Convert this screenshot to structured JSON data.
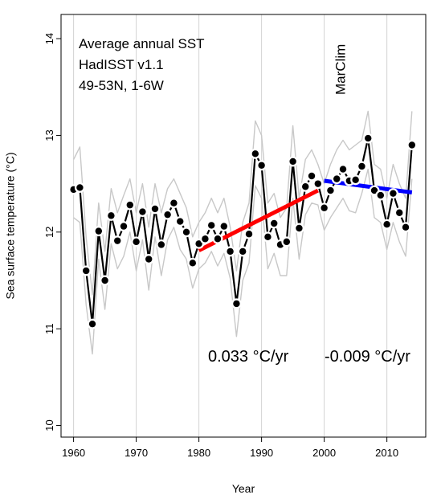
{
  "chart_data": {
    "type": "line",
    "xlabel": "Year",
    "ylabel": "Sea surface temperature (°C)",
    "xlim": [
      1958,
      2016.2
    ],
    "ylim": [
      9.88,
      14.25
    ],
    "xticks": [
      1960,
      1970,
      1980,
      1990,
      2000,
      2010
    ],
    "yticks": [
      10,
      11,
      12,
      13,
      14
    ],
    "grid": "vertical",
    "annotation_lines": [
      "Average annual SST",
      "HadISST v1.1",
      "49-53N, 1-6W"
    ],
    "marclim_label": "MarClim",
    "marclim_year": 2000,
    "series": [
      {
        "role": "mean",
        "color": "#000000",
        "x": [
          1960,
          1961,
          1962,
          1963,
          1964,
          1965,
          1966,
          1967,
          1968,
          1969,
          1970,
          1971,
          1972,
          1973,
          1974,
          1975,
          1976,
          1977,
          1978,
          1979,
          1980,
          1981,
          1982,
          1983,
          1984,
          1985,
          1986,
          1987,
          1988,
          1989,
          1990,
          1991,
          1992,
          1993,
          1994,
          1995,
          1996,
          1997,
          1998,
          1999,
          2000,
          2001,
          2002,
          2003,
          2004,
          2005,
          2006,
          2007,
          2008,
          2009,
          2010,
          2011,
          2012,
          2013,
          2014
        ],
        "values": [
          12.44,
          12.46,
          11.6,
          11.05,
          12.01,
          11.5,
          12.17,
          11.91,
          12.06,
          12.28,
          11.9,
          12.21,
          11.72,
          12.24,
          11.87,
          12.18,
          12.3,
          12.11,
          12.0,
          11.68,
          11.88,
          11.93,
          12.07,
          11.93,
          12.06,
          11.8,
          11.26,
          11.8,
          11.98,
          12.81,
          12.69,
          11.95,
          12.09,
          11.87,
          11.9,
          12.73,
          12.04,
          12.47,
          12.58,
          12.5,
          12.25,
          12.43,
          12.55,
          12.65,
          12.53,
          12.54,
          12.68,
          12.97,
          12.43,
          12.38,
          12.08,
          12.4,
          12.2,
          12.05,
          12.9
        ]
      },
      {
        "role": "upper",
        "color": "#c8c8c8",
        "x": [
          1960,
          1961,
          1962,
          1963,
          1964,
          1965,
          1966,
          1967,
          1968,
          1969,
          1970,
          1971,
          1972,
          1973,
          1974,
          1975,
          1976,
          1977,
          1978,
          1979,
          1980,
          1981,
          1982,
          1983,
          1984,
          1985,
          1986,
          1987,
          1988,
          1989,
          1990,
          1991,
          1992,
          1993,
          1994,
          1995,
          1996,
          1997,
          1998,
          1999,
          2000,
          2001,
          2002,
          2003,
          2004,
          2005,
          2006,
          2007,
          2008,
          2009,
          2010,
          2011,
          2012,
          2013,
          2014
        ],
        "values": [
          12.75,
          12.88,
          11.95,
          11.35,
          12.3,
          11.8,
          12.45,
          12.2,
          12.38,
          12.55,
          12.2,
          12.5,
          12.05,
          12.5,
          12.2,
          12.45,
          12.55,
          12.4,
          12.25,
          11.95,
          12.1,
          12.2,
          12.35,
          12.2,
          12.35,
          12.05,
          11.6,
          12.1,
          12.3,
          13.15,
          13.0,
          12.3,
          12.4,
          12.15,
          12.25,
          13.1,
          12.35,
          12.75,
          12.85,
          12.7,
          12.5,
          12.7,
          12.85,
          12.95,
          12.85,
          12.9,
          12.95,
          13.25,
          12.7,
          12.65,
          12.35,
          12.7,
          12.5,
          12.35,
          13.25
        ]
      },
      {
        "role": "lower",
        "color": "#c8c8c8",
        "x": [
          1960,
          1961,
          1962,
          1963,
          1964,
          1965,
          1966,
          1967,
          1968,
          1969,
          1970,
          1971,
          1972,
          1973,
          1974,
          1975,
          1976,
          1977,
          1978,
          1979,
          1980,
          1981,
          1982,
          1983,
          1984,
          1985,
          1986,
          1987,
          1988,
          1989,
          1990,
          1991,
          1992,
          1993,
          1994,
          1995,
          1996,
          1997,
          1998,
          1999,
          2000,
          2001,
          2002,
          2003,
          2004,
          2005,
          2006,
          2007,
          2008,
          2009,
          2010,
          2011,
          2012,
          2013,
          2014
        ],
        "values": [
          12.15,
          12.1,
          11.25,
          10.74,
          11.72,
          11.2,
          11.88,
          11.62,
          11.75,
          12.0,
          11.6,
          11.92,
          11.4,
          11.95,
          11.55,
          11.92,
          12.05,
          11.82,
          11.72,
          11.42,
          11.62,
          11.68,
          11.8,
          11.65,
          11.78,
          11.52,
          10.92,
          11.5,
          11.68,
          12.48,
          12.35,
          11.62,
          11.78,
          11.55,
          11.55,
          12.35,
          11.72,
          12.18,
          12.3,
          12.28,
          12.02,
          12.15,
          12.25,
          12.35,
          12.22,
          12.2,
          12.4,
          12.65,
          12.15,
          12.1,
          11.82,
          12.1,
          11.9,
          11.75,
          12.55
        ]
      }
    ],
    "trends": [
      {
        "label": "0.033 °C/yr",
        "color": "#ff0000",
        "x": [
          1980,
          1999
        ],
        "y": [
          11.81,
          12.43
        ]
      },
      {
        "label": "-0.009 °C/yr",
        "color": "#0000ff",
        "x": [
          2000,
          2014
        ],
        "y": [
          12.53,
          12.41
        ]
      }
    ]
  }
}
